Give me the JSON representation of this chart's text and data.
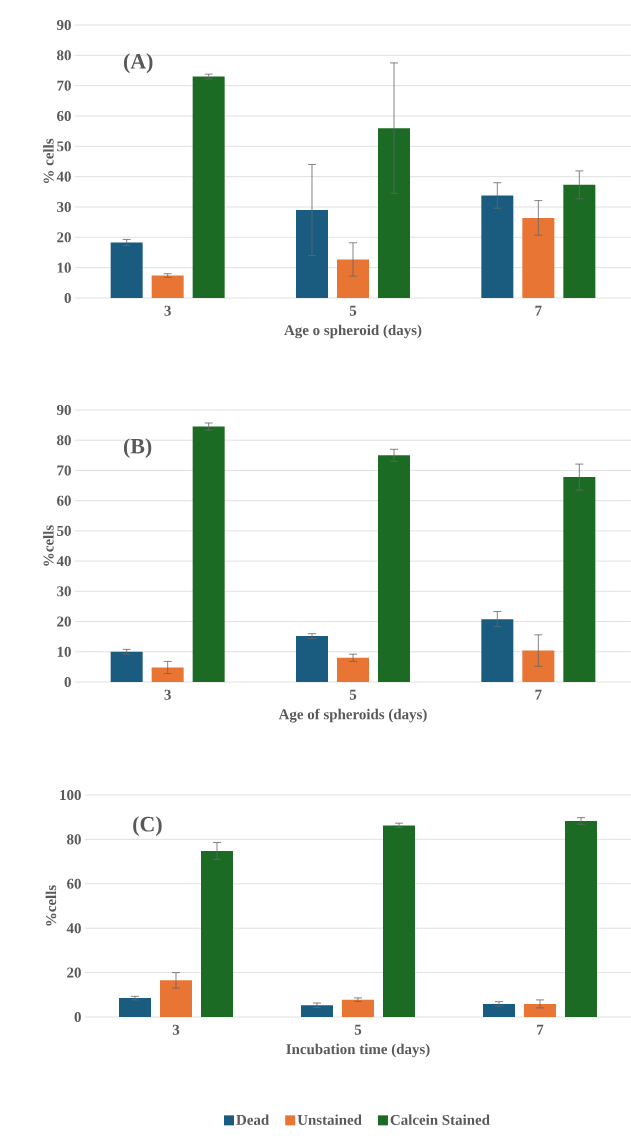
{
  "chart_data": [
    {
      "type": "bar",
      "annotations": [
        "(A)"
      ],
      "xlabel": "Age o spheroid (days)",
      "ylabel": "% cells",
      "categories": [
        "3",
        "5",
        "7"
      ],
      "ylim": [
        0,
        90
      ],
      "yticks": [
        0,
        10,
        20,
        30,
        40,
        50,
        60,
        70,
        80,
        90
      ],
      "grid": "y",
      "legend": false,
      "series": [
        {
          "color": "#1a5c80",
          "values": [
            18.3,
            29,
            33.8
          ],
          "errors": [
            1,
            15,
            4.2
          ]
        },
        {
          "color": "#e87534",
          "values": [
            7.4,
            12.7,
            26.4
          ],
          "errors": [
            0.6,
            5.5,
            5.7
          ]
        },
        {
          "color": "#1c6b25",
          "values": [
            73,
            56,
            37.3
          ],
          "errors": [
            0.8,
            21.5,
            4.6
          ]
        }
      ]
    },
    {
      "type": "bar",
      "annotations": [
        "(B)"
      ],
      "xlabel": "Age of spheroids (days)",
      "ylabel": "%cells",
      "categories": [
        "3",
        "5",
        "7"
      ],
      "ylim": [
        0,
        90
      ],
      "yticks": [
        0,
        10,
        20,
        30,
        40,
        50,
        60,
        70,
        80,
        90
      ],
      "grid": "y",
      "legend": false,
      "series": [
        {
          "color": "#1a5c80",
          "values": [
            10,
            15.2,
            20.8
          ],
          "errors": [
            0.8,
            0.8,
            2.5
          ]
        },
        {
          "color": "#e87534",
          "values": [
            4.8,
            8,
            10.4
          ],
          "errors": [
            2,
            1.2,
            5.2
          ]
        },
        {
          "color": "#1c6b25",
          "values": [
            84.5,
            75,
            67.8
          ],
          "errors": [
            1.2,
            2,
            4.3
          ]
        }
      ]
    },
    {
      "type": "bar",
      "annotations": [
        "(C)"
      ],
      "xlabel": "Incubation time (days)",
      "ylabel": "%cells",
      "categories": [
        "3",
        "5",
        "7"
      ],
      "ylim": [
        0,
        100
      ],
      "yticks": [
        0,
        20,
        40,
        60,
        80,
        100
      ],
      "grid": "y",
      "legend": "bottom",
      "series": [
        {
          "name": "Dead",
          "color": "#1a5c80",
          "values": [
            8.5,
            5.3,
            5.9
          ],
          "errors": [
            0.8,
            1,
            1
          ]
        },
        {
          "name": "Unstained",
          "color": "#e87534",
          "values": [
            16.5,
            7.8,
            5.9
          ],
          "errors": [
            3.5,
            0.8,
            1.8
          ]
        },
        {
          "name": "Calcein Stained",
          "color": "#1c6b25",
          "values": [
            74.8,
            86.3,
            88.3
          ],
          "errors": [
            3.8,
            1,
            1.5
          ]
        }
      ]
    }
  ]
}
